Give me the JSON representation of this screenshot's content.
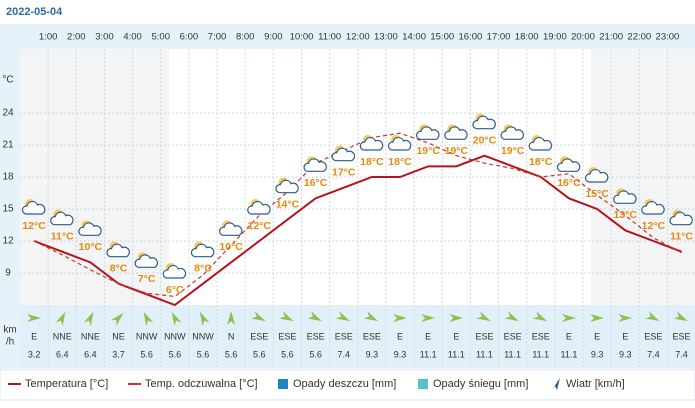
{
  "chart_data": {
    "type": "line",
    "title": "2022-05-04",
    "y_axis_label": "°C",
    "categories": [
      null,
      "1:00",
      "2:00",
      "3:00",
      "4:00",
      "5:00",
      "6:00",
      "7:00",
      "8:00",
      "9:00",
      "10:00",
      "11:00",
      "12:00",
      "13:00",
      "14:00",
      "15:00",
      "16:00",
      "17:00",
      "18:00",
      "19:00",
      "20:00",
      "21:00",
      "22:00",
      "23:00"
    ],
    "ylim": [
      6,
      30
    ],
    "yticks": [
      9,
      12,
      15,
      18,
      21,
      24
    ],
    "grid": true,
    "series": [
      {
        "name": "Temperatura [°C]",
        "color": "#b5121b",
        "values": [
          12,
          11,
          10,
          8,
          7,
          6,
          8,
          10,
          12,
          14,
          16,
          17,
          18,
          18,
          19,
          19,
          20,
          19,
          18,
          16,
          15,
          13,
          12,
          11
        ],
        "value_labels": [
          "12°C",
          "11°C",
          "10°C",
          "8°C",
          "7°C",
          "6°C",
          "8°C",
          "10°C",
          "12°C",
          "14°C",
          "16°C",
          "17°C",
          "18°C",
          "18°C",
          "19°C",
          "19°C",
          "20°C",
          "19°C",
          "18°C",
          "16°C",
          "15°C",
          "13°C",
          "12°C",
          "11°C"
        ]
      },
      {
        "name": "Temp. odczuwalna [°C]",
        "color": "#d0312d",
        "dashed": true,
        "values": [
          12,
          10.7,
          9.3,
          8,
          7.1,
          6.8,
          8.8,
          11.6,
          14.4,
          16.6,
          19.3,
          20.5,
          21.7,
          22.1,
          21.2,
          20,
          19.3,
          18.8,
          18,
          18.3,
          16.3,
          14.4,
          12.3,
          10.9
        ]
      }
    ],
    "legend_extra": [
      "Opady deszczu [mm]",
      "Opady śniegu [mm]",
      "Wiatr [km/h]"
    ],
    "wind_axis_label": [
      "km",
      "/h"
    ],
    "wind": {
      "directions": [
        "E",
        "NNE",
        "NNE",
        "NE",
        "NNW",
        "NNW",
        "NNW",
        "N",
        "ESE",
        "ESE",
        "ESE",
        "ESE",
        "ESE",
        "E",
        "E",
        "E",
        "ESE",
        "ESE",
        "ESE",
        "E",
        "E",
        "E",
        "ESE",
        "ESE"
      ],
      "speeds": [
        3.2,
        6.4,
        6.4,
        3.7,
        5.6,
        5.6,
        5.6,
        5.6,
        5.6,
        5.6,
        5.6,
        7.4,
        9.3,
        9.3,
        11.1,
        11.1,
        11.1,
        11.1,
        11.1,
        11.1,
        9.3,
        9.3,
        7.4,
        7.4
      ]
    }
  }
}
